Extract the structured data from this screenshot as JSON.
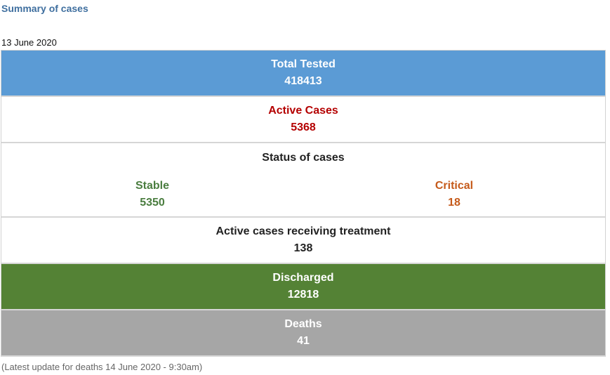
{
  "summary_title": "Summary of cases",
  "report_date": "13 June 2020",
  "colors": {
    "title_blue": "#3f6f9f",
    "tested_blue": "#5b9bd5",
    "active_red": "#b40000",
    "stable_green": "#4a7d3f",
    "critical_orange": "#c55a1a",
    "discharged_green": "#548235",
    "deaths_gray": "#a6a6a6"
  },
  "table": {
    "total_tested": {
      "label": "Total Tested",
      "value": "418413"
    },
    "active_cases": {
      "label": "Active Cases",
      "value": "5368"
    },
    "status_of_cases": {
      "label": "Status of cases",
      "stable": {
        "label": "Stable",
        "value": "5350"
      },
      "critical": {
        "label": "Critical",
        "value": "18"
      }
    },
    "receiving_treatment": {
      "label": "Active cases receiving treatment",
      "value": "138"
    },
    "discharged": {
      "label": "Discharged",
      "value": "12818"
    },
    "deaths": {
      "label": "Deaths",
      "value": "41"
    }
  },
  "footnote": "(Latest update for deaths 14 June 2020 - 9:30am)"
}
